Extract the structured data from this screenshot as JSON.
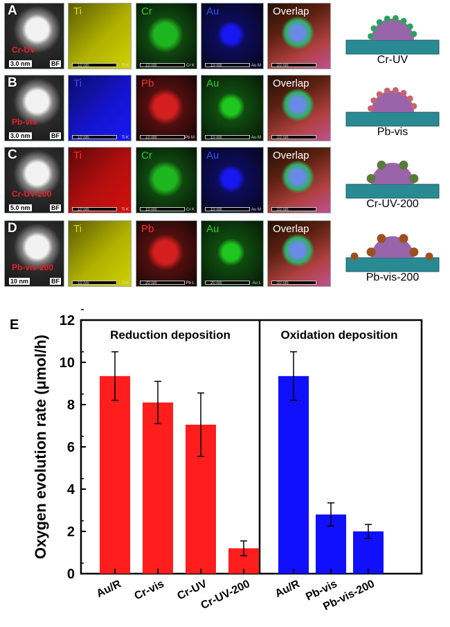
{
  "colors": {
    "reduction_bars": "#ff1d1d",
    "oxidation_bars": "#1010ff",
    "ti_yellow": "#dcdc00",
    "ti_blue": "#1818ff",
    "ti_red": "#e01010",
    "cr_green": "#20c020",
    "pb_red": "#e02020",
    "au_blue": "#1818ff",
    "au_green": "#20d020",
    "substrate": "#2a8a94",
    "particle": "#9a64aa",
    "cr_dot_uv": "#2ca25f",
    "pb_dot_vis": "#c8646e",
    "cr_dot_200": "#5a7a3a",
    "pb_dot_200": "#9c5020"
  },
  "panels": [
    {
      "letter": "A",
      "bf": {
        "sample": "Cr-UV",
        "scale": "3.0 nm",
        "mark": "BF"
      },
      "maps": [
        {
          "label": "Ti",
          "label_color": "#e0e000",
          "scale": "10 nm",
          "element": "Ti K",
          "tint": "ti_yellow"
        },
        {
          "label": "Cr",
          "label_color": "#30d030",
          "scale": "10 nm",
          "element": "Cr K",
          "tint": "cr_green"
        },
        {
          "label": "Au",
          "label_color": "#3050ff",
          "scale": "10 nm",
          "element": "Au M",
          "tint": "au_blue"
        },
        {
          "label": "Overlap",
          "label_color": "#ffffff",
          "scale": "10 nm",
          "element": "",
          "tint": "overlap"
        }
      ],
      "schematic": {
        "label": "Cr-UV",
        "dots": "cr_dot_uv"
      }
    },
    {
      "letter": "B",
      "bf": {
        "sample": "Pb-vis",
        "scale": "3.0 nm",
        "mark": "BF"
      },
      "maps": [
        {
          "label": "Ti",
          "label_color": "#3050ff",
          "scale": "10 nm",
          "element": "Ti K",
          "tint": "ti_blue"
        },
        {
          "label": "Pb",
          "label_color": "#ff3030",
          "scale": "10 nm",
          "element": "Pb M",
          "tint": "pb_red"
        },
        {
          "label": "Au",
          "label_color": "#30d030",
          "scale": "10 nm",
          "element": "Au M",
          "tint": "au_green"
        },
        {
          "label": "Overlap",
          "label_color": "#ffffff",
          "scale": "10 nm",
          "element": "",
          "tint": "overlap"
        }
      ],
      "schematic": {
        "label": "Pb-vis",
        "dots": "pb_dot_vis"
      }
    },
    {
      "letter": "C",
      "bf": {
        "sample": "Cr-UV-200",
        "scale": "5.0 nm",
        "mark": "BF"
      },
      "maps": [
        {
          "label": "Ti",
          "label_color": "#ff3030",
          "scale": "10 nm",
          "element": "Ti K",
          "tint": "ti_red"
        },
        {
          "label": "Cr",
          "label_color": "#30d030",
          "scale": "10 nm",
          "element": "Cr K",
          "tint": "cr_green"
        },
        {
          "label": "Au",
          "label_color": "#3050ff",
          "scale": "10 nm",
          "element": "Au M",
          "tint": "au_blue"
        },
        {
          "label": "Overlap",
          "label_color": "#ffffff",
          "scale": "10 nm",
          "element": "",
          "tint": "overlap"
        }
      ],
      "schematic": {
        "label": "Cr-UV-200",
        "dots": "cr_dot_200"
      }
    },
    {
      "letter": "D",
      "bf": {
        "sample": "Pb-vis-200",
        "scale": "10 nm",
        "mark": "BF"
      },
      "maps": [
        {
          "label": "Ti",
          "label_color": "#e0e000",
          "scale": "10 nm",
          "element": "Ti K",
          "tint": "ti_yellow"
        },
        {
          "label": "Pb",
          "label_color": "#ff3030",
          "scale": "20 nm",
          "element": "Pb L",
          "tint": "pb_red"
        },
        {
          "label": "Au",
          "label_color": "#30d030",
          "scale": "20 nm",
          "element": "Au L",
          "tint": "au_green"
        },
        {
          "label": "Overlap",
          "label_color": "#ffffff",
          "scale": "20 nm",
          "element": "",
          "tint": "overlap"
        }
      ],
      "schematic": {
        "label": "Pb-vis-200",
        "dots": "pb_dot_200"
      }
    }
  ],
  "chart_data": {
    "type": "bar",
    "panel_letter": "E",
    "ylabel": "Oxygen evolution rate (μmol/h)",
    "ylim": [
      0,
      12
    ],
    "yticks": [
      "0",
      "2",
      "4",
      "6",
      "8",
      "10",
      "12"
    ],
    "grid": false,
    "groups": [
      {
        "title": "Reduction deposition",
        "color": "#ff1d1d",
        "categories": [
          "Au/R",
          "Cr-vis",
          "Cr-UV",
          "Cr-UV-200"
        ],
        "values": [
          9.35,
          8.1,
          7.05,
          1.2
        ],
        "errors": [
          1.15,
          1.0,
          1.5,
          0.35
        ]
      },
      {
        "title": "Oxidation deposition",
        "color": "#1010ff",
        "categories": [
          "Au/R",
          "Pb-vis",
          "Pb-vis-200"
        ],
        "values": [
          9.35,
          2.8,
          2.0
        ],
        "errors": [
          1.15,
          0.55,
          0.33
        ]
      }
    ]
  }
}
